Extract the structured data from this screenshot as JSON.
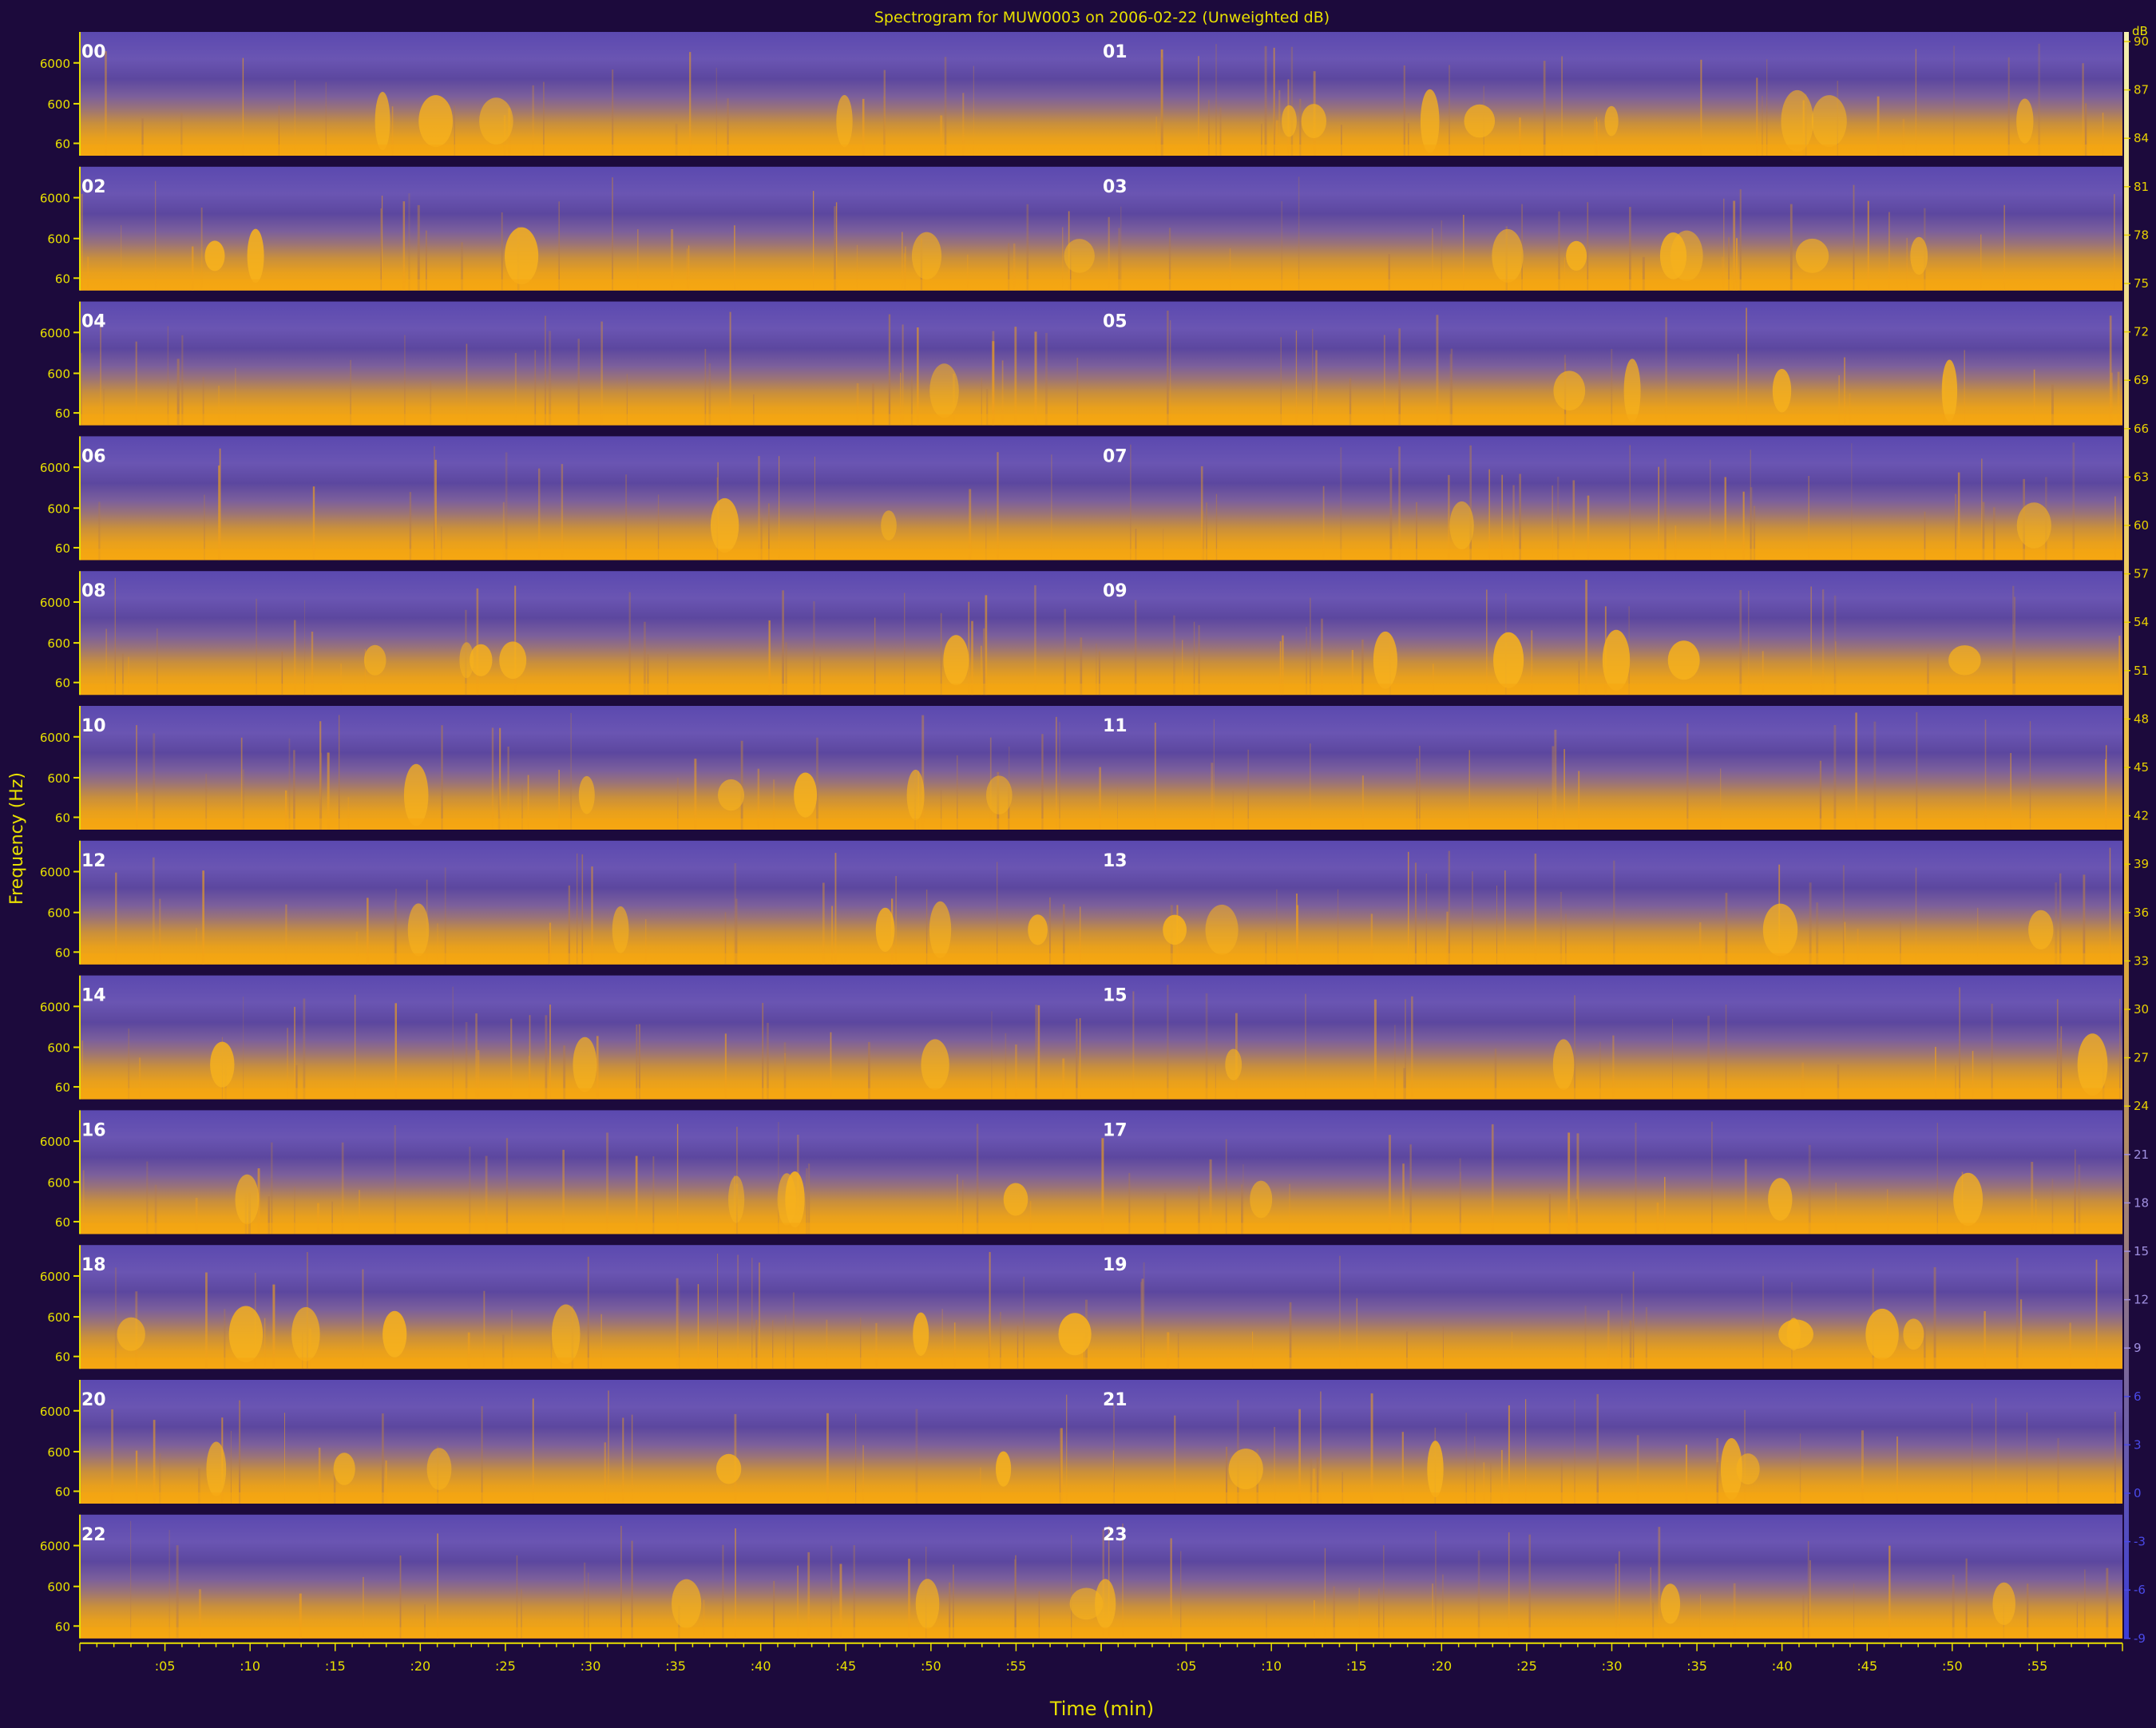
{
  "chart_data": {
    "type": "heatmap",
    "title": "Spectrogram for MUW0003 on 2006-02-22 (Unweighted dB)",
    "xlabel": "Time (min)",
    "ylabel": "Frequency (Hz)",
    "y_tick_labels": [
      "6000",
      "600",
      "60"
    ],
    "x_tick_labels": [
      ":05",
      ":10",
      ":15",
      ":20",
      ":25",
      ":30",
      ":35",
      ":40",
      ":45",
      ":50",
      ":55"
    ],
    "hour_labels": [
      "00",
      "01",
      "02",
      "03",
      "04",
      "05",
      "06",
      "07",
      "08",
      "09",
      "10",
      "11",
      "12",
      "13",
      "14",
      "15",
      "16",
      "17",
      "18",
      "19",
      "20",
      "21",
      "22",
      "23"
    ],
    "colorbar": {
      "unit": "dB",
      "ticks": [
        "90",
        "87",
        "84",
        "81",
        "78",
        "75",
        "72",
        "69",
        "66",
        "63",
        "60",
        "57",
        "54",
        "51",
        "48",
        "45",
        "42",
        "39",
        "36",
        "33",
        "30",
        "27",
        "24",
        "21",
        "18",
        "15",
        "12",
        "9",
        "6",
        "3",
        "0",
        "-3",
        "-6",
        "-9"
      ],
      "range": [
        -9,
        90
      ]
    },
    "colors": {
      "background": "#1c0a3c",
      "panel_low": "#5a45a8",
      "panel_high": "#f2a513",
      "text": "#e8e000",
      "hour_label": "#ffffff"
    }
  }
}
